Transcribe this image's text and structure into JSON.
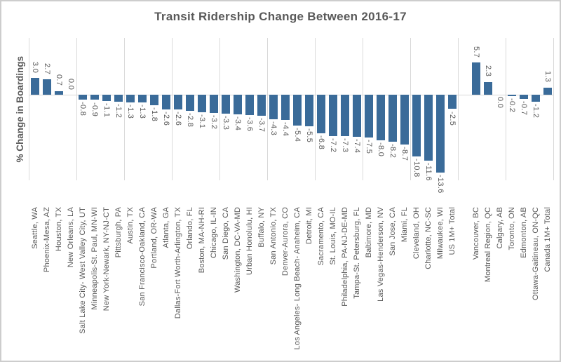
{
  "chart_data": {
    "type": "bar",
    "title": "Transit Ridership Change Between 2016-17",
    "ylabel": "% Change in Boardings",
    "ylim": [
      -15,
      10
    ],
    "grid": "vertical-only",
    "gridline_every_slots": 4,
    "legend": "none",
    "bar_color": "#3a6b99",
    "text_color": "#595959",
    "gridline_color": "#d9d9d9",
    "value_label_format": "one-decimal",
    "items": [
      {
        "label": "Seattle, WA",
        "value": 3.0
      },
      {
        "label": "Phoenix-Mesa, AZ",
        "value": 2.7
      },
      {
        "label": "Houston, TX",
        "value": 0.7
      },
      {
        "label": "New Orleans, LA",
        "value": 0.0
      },
      {
        "label": "Salt Lake City- West Valley City, UT",
        "value": -0.8
      },
      {
        "label": "Minneapolis-St. Paul, MN-WI",
        "value": -0.9
      },
      {
        "label": "New York-Newark, NY-NJ-CT",
        "value": -1.1
      },
      {
        "label": "Pittsburgh, PA",
        "value": -1.2
      },
      {
        "label": "Austin, TX",
        "value": -1.3
      },
      {
        "label": "San Francisco-Oakland, CA",
        "value": -1.3
      },
      {
        "label": "Portland, OR-WA",
        "value": -1.8
      },
      {
        "label": "Atlanta, GA",
        "value": -2.6
      },
      {
        "label": "Dallas-Fort Worth-Arlington, TX",
        "value": -2.6
      },
      {
        "label": "Orlando, FL",
        "value": -2.8
      },
      {
        "label": "Boston, MA-NH-RI",
        "value": -3.1
      },
      {
        "label": "Chicago, IL-IN",
        "value": -3.2
      },
      {
        "label": "San Diego, CA",
        "value": -3.3
      },
      {
        "label": "Washington, DC-VA-MD",
        "value": -3.4
      },
      {
        "label": "Urban Honolulu, HI",
        "value": -3.6
      },
      {
        "label": "Buffalo, NY",
        "value": -3.7
      },
      {
        "label": "San Antonio, TX",
        "value": -4.3
      },
      {
        "label": "Denver-Aurora, CO",
        "value": -4.4
      },
      {
        "label": "Los Angeles- Long Beach- Anaheim, CA",
        "value": -5.4
      },
      {
        "label": "Detroit, MI",
        "value": -5.5
      },
      {
        "label": "Sacramento, CA",
        "value": -6.8
      },
      {
        "label": "St. Louis, MO-IL",
        "value": -7.2
      },
      {
        "label": "Philadelphia, PA-NJ-DE-MD",
        "value": -7.3
      },
      {
        "label": "Tampa-St. Petersburg, FL",
        "value": -7.4
      },
      {
        "label": "Baltimore, MD",
        "value": -7.5
      },
      {
        "label": "Las Vegas-Henderson, NV",
        "value": -8.0
      },
      {
        "label": "San Jose, CA",
        "value": -8.2
      },
      {
        "label": "Miami, FL",
        "value": -8.7
      },
      {
        "label": "Cleveland, OH",
        "value": -10.8
      },
      {
        "label": "Charlotte, NC-SC",
        "value": -11.6
      },
      {
        "label": "Milwaukee, WI",
        "value": -13.6
      },
      {
        "label": "US 1M+ Total",
        "value": -2.5
      },
      {
        "spacer": true
      },
      {
        "label": "Vancouver, BC",
        "value": 5.7
      },
      {
        "label": "Montreal Region, QC",
        "value": 2.3
      },
      {
        "label": "Calgary, AB",
        "value": 0.0,
        "label_below": true
      },
      {
        "label": "Toronto, ON",
        "value": -0.2
      },
      {
        "label": "Edmonton, AB",
        "value": -0.7
      },
      {
        "label": "Ottawa-Gaitineau, ON-QC",
        "value": -1.2
      },
      {
        "label": "Canada 1M+ Total",
        "value": 1.3
      }
    ]
  }
}
